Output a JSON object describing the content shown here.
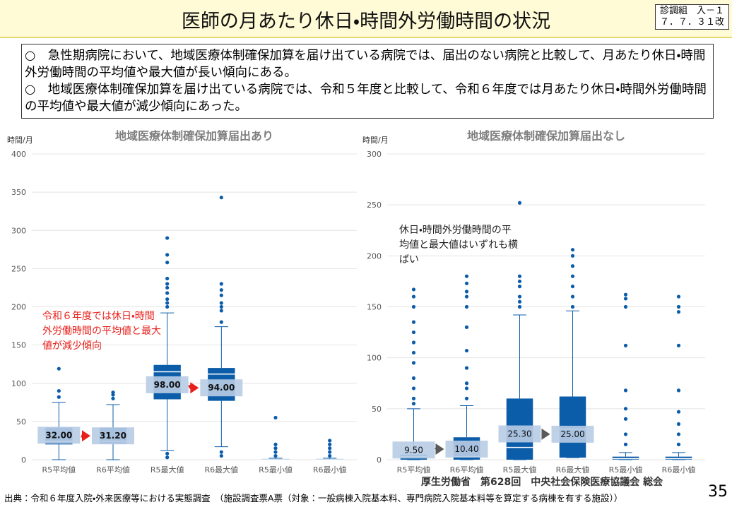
{
  "header": {
    "title": "医師の月あたり休日・時間外労働時間の状況",
    "tag_line1": "診調組　入－１",
    "tag_line2": "７．７．３１改"
  },
  "bullets": [
    {
      "mark": "○",
      "text": "急性期病院において、地域医療体制確保加算を届け出ている病院では、届出のない病院と比較して、月あたり休日・時間外労働時間の平均値や最大値が長い傾向にある。"
    },
    {
      "mark": "○",
      "text": "地域医療体制確保加算を届け出ている病院では、令和５年度と比較して、令和６年度では月あたり休日・時間外労働時間の平均値や最大値が減少傾向にあった。"
    }
  ],
  "chart_data": [
    {
      "type": "box",
      "title": "地域医療体制確保加算届出あり",
      "y_label": "時間/月",
      "categories": [
        "R5平均値",
        "R6平均値",
        "R5最大値",
        "R6最大値",
        "R5最小値",
        "R6最小値"
      ],
      "ylim": [
        0,
        400
      ],
      "yticks": [
        0,
        50,
        100,
        150,
        200,
        250,
        300,
        350,
        400
      ],
      "grid": true,
      "color": "#0b5ca9",
      "label_color": "#b8cce4",
      "arrow_color": "#e8201b",
      "whisker_low": [
        0,
        0,
        12,
        17,
        0,
        0
      ],
      "q1": [
        20,
        21,
        79,
        77,
        0,
        0
      ],
      "median": [
        24,
        24,
        115,
        112,
        0,
        0
      ],
      "q3": [
        42,
        42,
        124,
        120,
        1,
        1
      ],
      "whisker_high": [
        75,
        72,
        192,
        174,
        2,
        2
      ],
      "outliers": [
        [
          82,
          90,
          119
        ],
        [
          80,
          85,
          88
        ],
        [
          3,
          8,
          200,
          205,
          210,
          218,
          225,
          230,
          237,
          258,
          268,
          290
        ],
        [
          5,
          10,
          180,
          195,
          200,
          205,
          215,
          222,
          230,
          343
        ],
        [
          5,
          10,
          15,
          20,
          55
        ],
        [
          5,
          10,
          15,
          20,
          25
        ]
      ],
      "means": [
        32,
        31.2,
        98,
        94,
        null,
        null
      ],
      "value_labels": [
        "32.00",
        "31.20",
        "98.00",
        "94.00",
        null,
        null
      ],
      "annotation": "令和６年度では休日・時間外労働時間の平均値と最大値が減少傾向"
    },
    {
      "type": "box",
      "title": "地域医療体制確保加算届出なし",
      "y_label": "時間/月",
      "categories": [
        "R5平均値",
        "R6平均値",
        "R5最大値",
        "R6最大値",
        "R5最小値",
        "R6最小値"
      ],
      "ylim": [
        0,
        300
      ],
      "yticks": [
        0,
        50,
        100,
        150,
        200,
        250,
        300
      ],
      "grid": true,
      "color": "#0b5ca9",
      "label_color": "#b8cce4",
      "arrow_color": "#595959",
      "whisker_low": [
        0,
        0,
        0,
        2,
        0,
        0
      ],
      "q1": [
        0,
        0,
        0,
        2,
        0,
        0
      ],
      "median": [
        3,
        3,
        12,
        30,
        1,
        1
      ],
      "q3": [
        5,
        22,
        60,
        62,
        3,
        3
      ],
      "whisker_high": [
        50,
        53,
        142,
        146,
        7,
        7
      ],
      "outliers": [
        [
          55,
          60,
          70,
          80,
          95,
          105,
          115,
          125,
          135,
          150,
          160,
          167
        ],
        [
          60,
          70,
          75,
          90,
          107,
          130,
          150,
          160,
          165,
          173,
          180
        ],
        [
          150,
          155,
          160,
          170,
          175,
          180,
          252
        ],
        [
          150,
          160,
          170,
          180,
          190,
          200,
          206
        ],
        [
          15,
          25,
          40,
          50,
          68,
          112,
          150,
          158,
          162
        ],
        [
          15,
          25,
          35,
          47,
          68,
          112,
          145,
          150,
          160
        ]
      ],
      "means": [
        9.5,
        10.4,
        25.3,
        25,
        null,
        null
      ],
      "value_labels": [
        "9.50",
        "10.40",
        "25.30",
        "25.00",
        null,
        null
      ],
      "annotation": "休日・時間外労働時間の平均値と最大値はいずれも横ばい"
    }
  ],
  "footer": {
    "source": "出典：令和６年度入院・外来医療等における実態調査　（施設調査票A票（対象：一般病棟入院基本料、専門病院入院基本料等を算定する病棟を有する施設））",
    "organization": "厚生労働省　第628回　中央社会保険医療協議会 総会",
    "page": "35"
  }
}
